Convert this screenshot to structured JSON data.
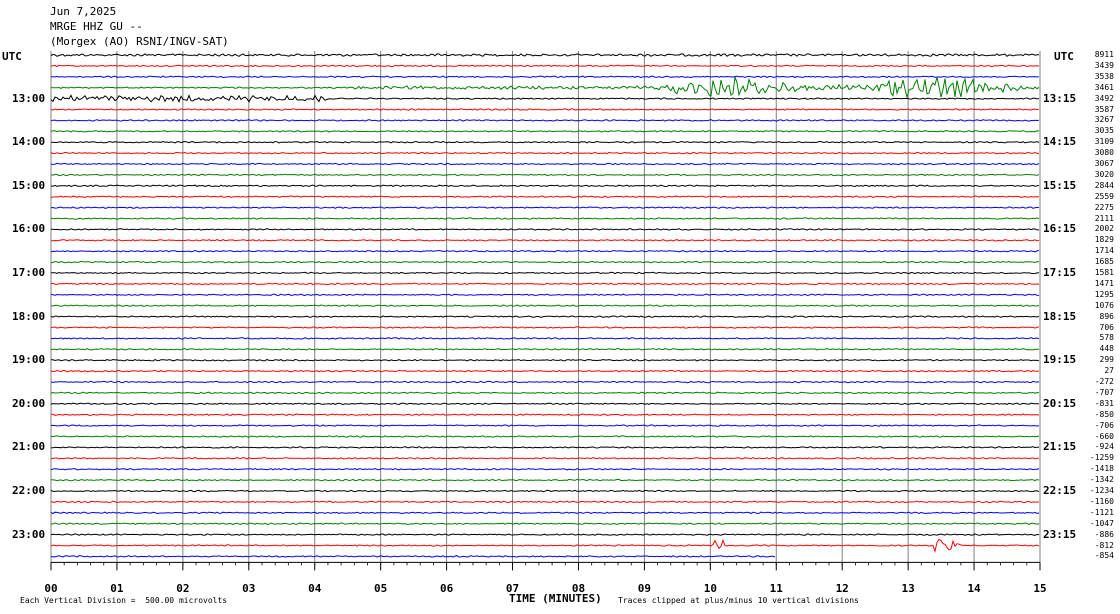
{
  "header": {
    "date": "Jun 7,2025",
    "station": "MRGE HHZ GU --",
    "network": "(Morgex (AO) RSNI/INGV-SAT)"
  },
  "left_timezone": "UTC",
  "right_timezone": "UTC",
  "colors": {
    "black": "#000000",
    "red": "#ff0000",
    "blue": "#0000ff",
    "green": "#008000",
    "grid": "#808080"
  },
  "chart_data": {
    "type": "line",
    "title": "MRGE HHZ GU --",
    "xlabel": "TIME (MINUTES)",
    "x_ticks": [
      "00",
      "01",
      "02",
      "03",
      "04",
      "05",
      "06",
      "07",
      "08",
      "09",
      "10",
      "11",
      "12",
      "13",
      "14",
      "15"
    ],
    "xlim": [
      0,
      15
    ],
    "grid": true,
    "trace_colors": [
      "black",
      "red",
      "blue",
      "green"
    ],
    "left_hour_labels": [
      "13:00",
      "14:00",
      "15:00",
      "16:00",
      "17:00",
      "18:00",
      "19:00",
      "20:00",
      "21:00",
      "22:00",
      "23:00"
    ],
    "right_hour_labels": [
      "13:15",
      "14:15",
      "15:15",
      "16:15",
      "17:15",
      "18:15",
      "19:15",
      "20:15",
      "21:15",
      "22:15",
      "23:15"
    ],
    "counts": [
      "8911",
      "3439",
      "3538",
      "3461",
      "3492",
      "3587",
      "3267",
      "3035",
      "3109",
      "3080",
      "3067",
      "3020",
      "2844",
      "2559",
      "2275",
      "2111",
      "2002",
      "1829",
      "1714",
      "1685",
      "1581",
      "1471",
      "1295",
      "1076",
      "896",
      "706",
      "578",
      "448",
      "299",
      "27",
      "-272",
      "-707",
      "-831",
      "-850",
      "-706",
      "-660",
      "-924",
      "-1259",
      "-1418",
      "-1342",
      "-1234",
      "-1160",
      "-1121",
      "-1047",
      "-886",
      "-812",
      "-854"
    ]
  },
  "footer": {
    "left": "Each Vertical Division =  500.00 microvolts",
    "right": "Traces clipped at plus/minus 10 vertical divisions"
  }
}
